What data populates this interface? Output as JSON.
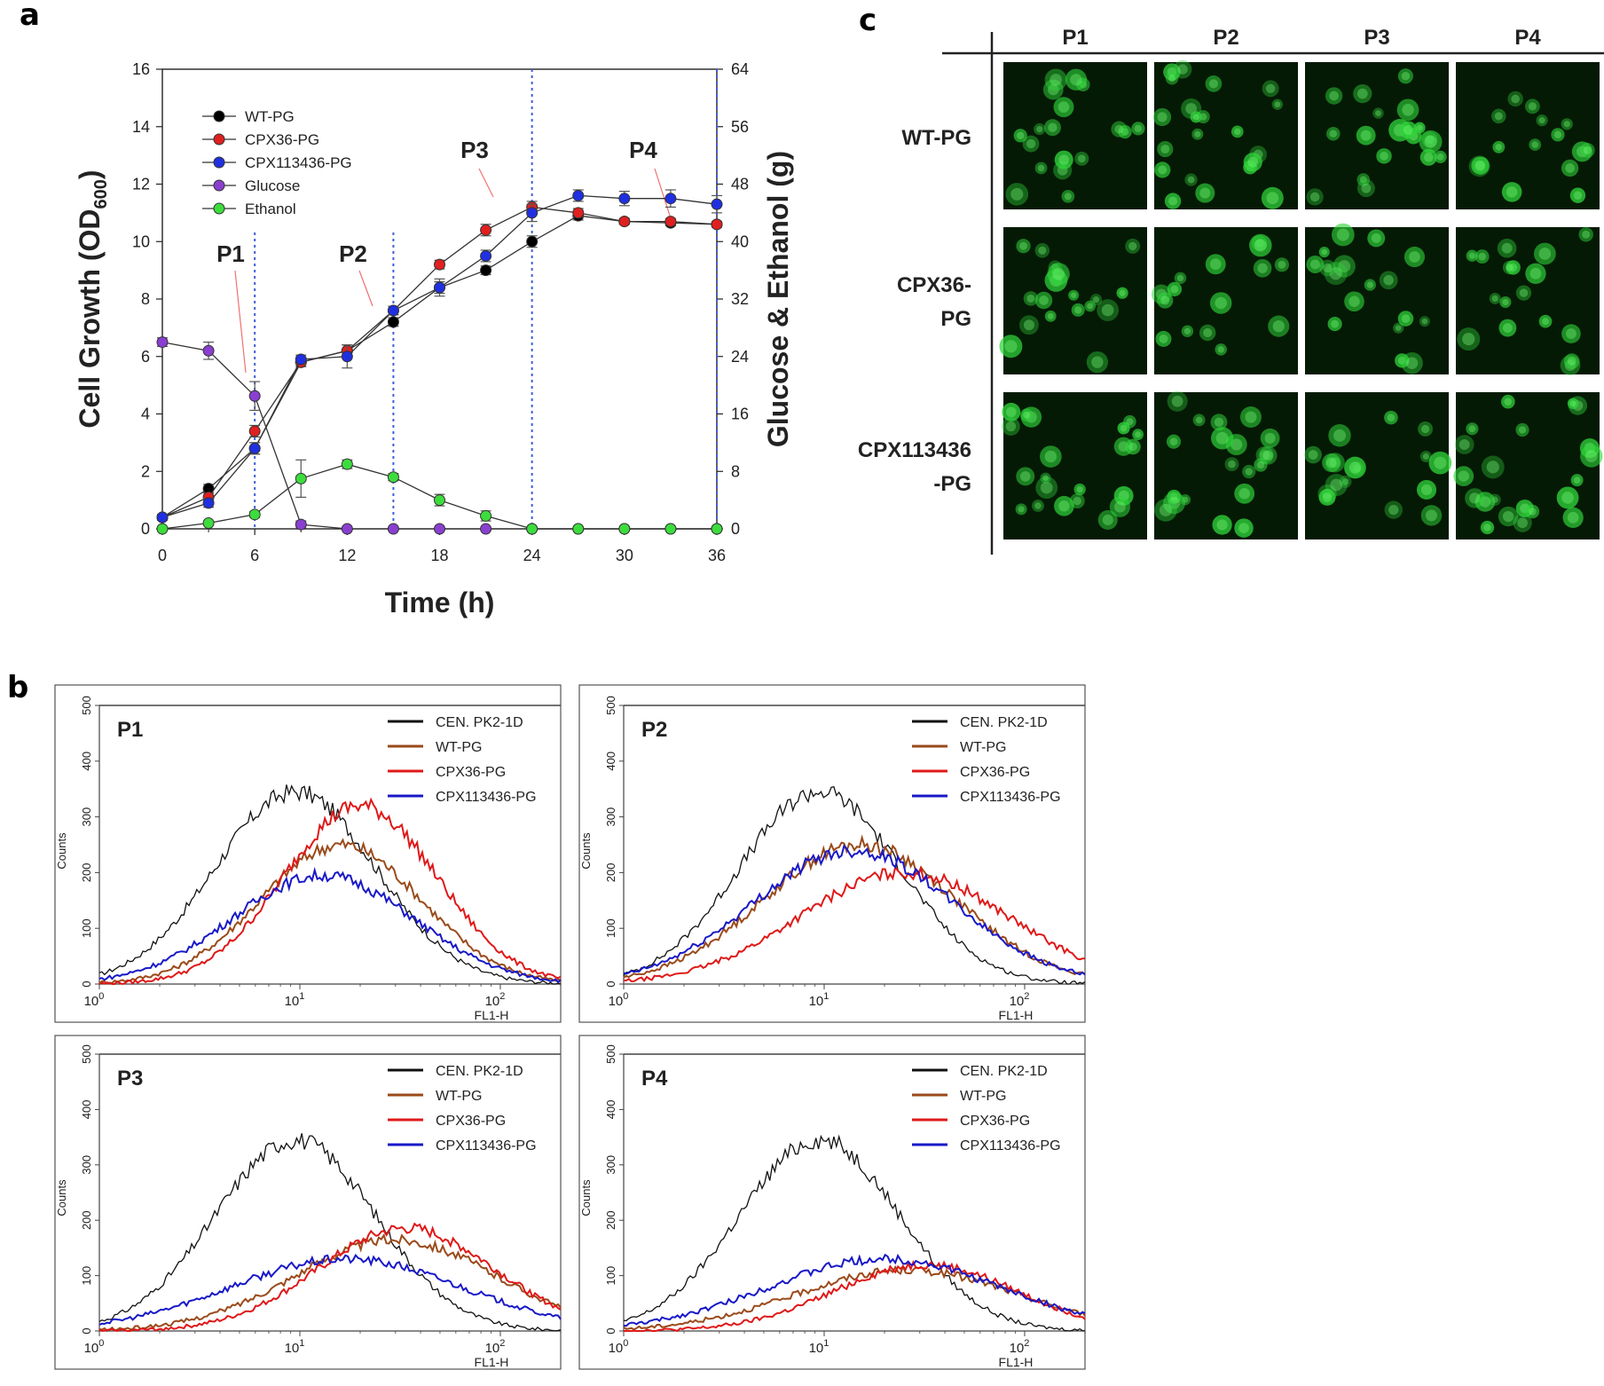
{
  "panels": {
    "a": "a",
    "b": "b",
    "c": "c"
  },
  "chart_data": [
    {
      "panel": "a",
      "type": "line",
      "title": "",
      "xlabel": "Time (h)",
      "ylabel": "Cell Growth (OD600)",
      "ylabel_main": "Cell Growth (OD",
      "ylabel_sub": "600",
      "ylabel_close": ")",
      "y2label": "Glucose & Ethanol (g)",
      "xlim": [
        0,
        36
      ],
      "ylim": [
        0,
        16
      ],
      "y2lim": [
        0,
        64
      ],
      "xticks": [
        "0",
        "6",
        "12",
        "18",
        "24",
        "30",
        "36"
      ],
      "yticks": [
        "0",
        "2",
        "4",
        "6",
        "8",
        "10",
        "12",
        "14",
        "16"
      ],
      "y2ticks": [
        "0",
        "8",
        "16",
        "24",
        "32",
        "40",
        "48",
        "56",
        "64"
      ],
      "x": [
        0,
        3,
        6,
        9,
        12,
        15,
        18,
        21,
        24,
        27,
        30,
        33,
        36
      ],
      "series": [
        {
          "name": "WT-PG",
          "color": "#000000",
          "axis": "left",
          "values": [
            0.4,
            1.4,
            2.8,
            5.8,
            6.2,
            7.2,
            8.4,
            9.0,
            10.0,
            10.9,
            10.7,
            10.65,
            10.6
          ],
          "errors": [
            0.1,
            0.15,
            0.2,
            0.15,
            0.2,
            0.15,
            0.2,
            0.15,
            0.2,
            0.15,
            0.1,
            0.1,
            0.1
          ]
        },
        {
          "name": "CPX36-PG",
          "color": "#e02020",
          "axis": "left",
          "values": [
            0.4,
            1.1,
            3.4,
            5.8,
            6.2,
            7.6,
            9.2,
            10.4,
            11.2,
            11.0,
            10.7,
            10.7,
            10.6
          ],
          "errors": [
            0.1,
            0.15,
            0.2,
            0.15,
            0.2,
            0.15,
            0.15,
            0.2,
            0.2,
            0.15,
            0.1,
            0.1,
            0.1
          ]
        },
        {
          "name": "CPX113436-PG",
          "color": "#2030e0",
          "axis": "left",
          "values": [
            0.4,
            0.9,
            2.8,
            5.9,
            6.0,
            7.6,
            8.4,
            9.5,
            11.0,
            11.6,
            11.5,
            11.5,
            11.3
          ],
          "errors": [
            0.1,
            0.15,
            0.2,
            0.15,
            0.4,
            0.15,
            0.3,
            0.2,
            0.3,
            0.2,
            0.25,
            0.3,
            0.3
          ]
        },
        {
          "name": "Glucose",
          "color": "#8a3fd0",
          "axis": "right",
          "values": [
            26.0,
            24.8,
            18.5,
            0.6,
            0.0,
            0.0,
            0.0,
            0.0,
            0.0,
            0.0,
            0.0,
            0.0,
            0.0
          ],
          "errors": [
            0.6,
            1.2,
            2.0,
            0.5,
            0,
            0,
            0,
            0,
            0,
            0,
            0,
            0,
            0
          ]
        },
        {
          "name": "Ethanol",
          "color": "#3ddc3d",
          "axis": "right",
          "values": [
            0.0,
            0.8,
            2.0,
            7.0,
            9.0,
            7.2,
            4.0,
            1.8,
            0.0,
            0.0,
            0.0,
            0.0,
            0.0
          ],
          "errors": [
            0.2,
            0.3,
            0.4,
            2.6,
            0.6,
            0.5,
            0.8,
            0.7,
            0.2,
            0,
            0,
            0,
            0
          ]
        }
      ],
      "annotations": [
        {
          "label": "P1",
          "time": 6
        },
        {
          "label": "P2",
          "time": 15
        },
        {
          "label": "P3",
          "time": 24
        },
        {
          "label": "P4",
          "time": 36
        }
      ],
      "legend": "top-left"
    },
    {
      "panel": "b",
      "type": "line",
      "subtype": "flow-cytometry-histograms",
      "xlabel": "FL1-H",
      "ylabel": "Counts",
      "xscale": "log",
      "xlim": [
        1,
        200
      ],
      "ylim": [
        0,
        500
      ],
      "yticks": [
        "0",
        "100",
        "200",
        "300",
        "400",
        "500"
      ],
      "xtick_base": "10",
      "xtick_exps": [
        "0",
        "1",
        "2"
      ],
      "legend": "top-right",
      "series_styles": [
        {
          "name": "CEN. PK2-1D",
          "color": "#111111"
        },
        {
          "name": "WT-PG",
          "color": "#9a4a1a"
        },
        {
          "name": "CPX36-PG",
          "color": "#e01818"
        },
        {
          "name": "CPX113436-PG",
          "color": "#1818c8"
        }
      ],
      "panels": [
        {
          "label": "P1",
          "peaks": [
            {
              "pos": 9.5,
              "height": 345,
              "width": 0.4
            },
            {
              "pos": 16,
              "height": 250,
              "width": 0.4
            },
            {
              "pos": 20,
              "height": 320,
              "width": 0.38
            },
            {
              "pos": 13,
              "height": 195,
              "width": 0.45
            }
          ]
        },
        {
          "label": "P2",
          "peaks": [
            {
              "pos": 9.5,
              "height": 345,
              "width": 0.4
            },
            {
              "pos": 15,
              "height": 250,
              "width": 0.48
            },
            {
              "pos": 25,
              "height": 200,
              "width": 0.52
            },
            {
              "pos": 14,
              "height": 240,
              "width": 0.5
            }
          ]
        },
        {
          "label": "P3",
          "peaks": [
            {
              "pos": 9.5,
              "height": 345,
              "width": 0.4
            },
            {
              "pos": 30,
              "height": 165,
              "width": 0.5
            },
            {
              "pos": 34,
              "height": 185,
              "width": 0.44
            },
            {
              "pos": 17,
              "height": 130,
              "width": 0.58
            }
          ]
        },
        {
          "label": "P4",
          "peaks": [
            {
              "pos": 9.5,
              "height": 345,
              "width": 0.4
            },
            {
              "pos": 26,
              "height": 110,
              "width": 0.55
            },
            {
              "pos": 32,
              "height": 120,
              "width": 0.45
            },
            {
              "pos": 20,
              "height": 130,
              "width": 0.58
            }
          ]
        }
      ]
    }
  ],
  "microscopy": {
    "columns": [
      "P1",
      "P2",
      "P3",
      "P4"
    ],
    "rows": [
      {
        "line1": "WT-PG",
        "line2": ""
      },
      {
        "line1": "CPX36-",
        "line2": "PG"
      },
      {
        "line1": "CPX113436",
        "line2": "-PG"
      }
    ],
    "cell_color": "#2fd43a"
  }
}
